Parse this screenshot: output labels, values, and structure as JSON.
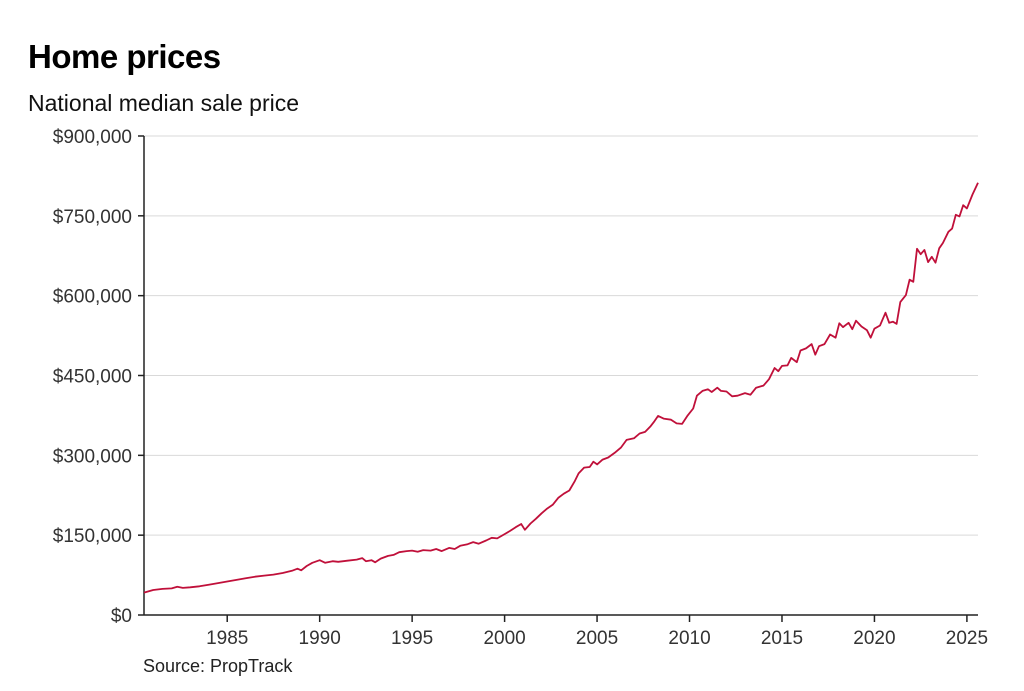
{
  "title": "Home prices",
  "subtitle": "National median sale price",
  "source": "Source: PropTrack",
  "colors": {
    "line": "#c0103a",
    "grid": "#d9d9d9",
    "axis": "#222222"
  },
  "chart_data": {
    "type": "line",
    "title": "Home prices",
    "subtitle": "National median sale price",
    "xlabel": "",
    "ylabel": "",
    "xlim": [
      1980.5,
      2025.6
    ],
    "ylim": [
      0,
      900000
    ],
    "grid": true,
    "legend": "none",
    "y_ticks": [
      0,
      150000,
      300000,
      450000,
      600000,
      750000,
      900000
    ],
    "y_tick_labels": [
      "$0",
      "$150,000",
      "$300,000",
      "$450,000",
      "$600,000",
      "$750,000",
      "$900,000"
    ],
    "x_ticks": [
      1985,
      1990,
      1995,
      2000,
      2005,
      2010,
      2015,
      2020,
      2025
    ],
    "x_tick_labels": [
      "1985",
      "1990",
      "1995",
      "2000",
      "2005",
      "2010",
      "2015",
      "2020",
      "2025"
    ],
    "series": [
      {
        "values": [
          [
            1980.5,
            42000
          ],
          [
            1981.0,
            47000
          ],
          [
            1981.5,
            49000
          ],
          [
            1982.0,
            50000
          ],
          [
            1982.3,
            53000
          ],
          [
            1982.6,
            51000
          ],
          [
            1983.0,
            52000
          ],
          [
            1983.5,
            54000
          ],
          [
            1984.0,
            57000
          ],
          [
            1984.5,
            60000
          ],
          [
            1985.0,
            63000
          ],
          [
            1985.5,
            66000
          ],
          [
            1986.0,
            69000
          ],
          [
            1986.5,
            72000
          ],
          [
            1987.0,
            74000
          ],
          [
            1987.5,
            76000
          ],
          [
            1988.0,
            79000
          ],
          [
            1988.5,
            83000
          ],
          [
            1988.8,
            87000
          ],
          [
            1989.0,
            84000
          ],
          [
            1989.3,
            92000
          ],
          [
            1989.6,
            98000
          ],
          [
            1990.0,
            103000
          ],
          [
            1990.3,
            98000
          ],
          [
            1990.7,
            101000
          ],
          [
            1991.0,
            100000
          ],
          [
            1991.5,
            102000
          ],
          [
            1992.0,
            104000
          ],
          [
            1992.3,
            107000
          ],
          [
            1992.5,
            101000
          ],
          [
            1992.8,
            103000
          ],
          [
            1993.0,
            99000
          ],
          [
            1993.3,
            106000
          ],
          [
            1993.7,
            111000
          ],
          [
            1994.0,
            113000
          ],
          [
            1994.3,
            118000
          ],
          [
            1994.7,
            120000
          ],
          [
            1995.0,
            121000
          ],
          [
            1995.3,
            119000
          ],
          [
            1995.6,
            122000
          ],
          [
            1996.0,
            121000
          ],
          [
            1996.3,
            124000
          ],
          [
            1996.6,
            120000
          ],
          [
            1997.0,
            126000
          ],
          [
            1997.3,
            124000
          ],
          [
            1997.6,
            130000
          ],
          [
            1998.0,
            133000
          ],
          [
            1998.3,
            137000
          ],
          [
            1998.6,
            134000
          ],
          [
            1999.0,
            140000
          ],
          [
            1999.3,
            145000
          ],
          [
            1999.6,
            144000
          ],
          [
            2000.0,
            152000
          ],
          [
            2000.3,
            158000
          ],
          [
            2000.6,
            165000
          ],
          [
            2000.9,
            171000
          ],
          [
            2001.1,
            160000
          ],
          [
            2001.4,
            172000
          ],
          [
            2001.7,
            181000
          ],
          [
            2002.0,
            191000
          ],
          [
            2002.3,
            200000
          ],
          [
            2002.6,
            207000
          ],
          [
            2002.9,
            220000
          ],
          [
            2003.2,
            228000
          ],
          [
            2003.5,
            234000
          ],
          [
            2003.8,
            252000
          ],
          [
            2004.0,
            266000
          ],
          [
            2004.3,
            277000
          ],
          [
            2004.6,
            278000
          ],
          [
            2004.8,
            288000
          ],
          [
            2005.0,
            283000
          ],
          [
            2005.3,
            292000
          ],
          [
            2005.6,
            296000
          ],
          [
            2006.0,
            306000
          ],
          [
            2006.3,
            315000
          ],
          [
            2006.6,
            329000
          ],
          [
            2007.0,
            332000
          ],
          [
            2007.3,
            341000
          ],
          [
            2007.6,
            344000
          ],
          [
            2007.9,
            355000
          ],
          [
            2008.1,
            364000
          ],
          [
            2008.3,
            374000
          ],
          [
            2008.6,
            369000
          ],
          [
            2009.0,
            367000
          ],
          [
            2009.3,
            360000
          ],
          [
            2009.6,
            359000
          ],
          [
            2009.9,
            375000
          ],
          [
            2010.2,
            388000
          ],
          [
            2010.4,
            412000
          ],
          [
            2010.7,
            421000
          ],
          [
            2011.0,
            424000
          ],
          [
            2011.2,
            419000
          ],
          [
            2011.5,
            427000
          ],
          [
            2011.7,
            421000
          ],
          [
            2012.0,
            420000
          ],
          [
            2012.3,
            411000
          ],
          [
            2012.6,
            412000
          ],
          [
            2013.0,
            417000
          ],
          [
            2013.3,
            414000
          ],
          [
            2013.6,
            427000
          ],
          [
            2014.0,
            431000
          ],
          [
            2014.3,
            443000
          ],
          [
            2014.6,
            464000
          ],
          [
            2014.8,
            458000
          ],
          [
            2015.0,
            468000
          ],
          [
            2015.3,
            469000
          ],
          [
            2015.5,
            483000
          ],
          [
            2015.8,
            475000
          ],
          [
            2016.0,
            497000
          ],
          [
            2016.3,
            501000
          ],
          [
            2016.6,
            509000
          ],
          [
            2016.8,
            489000
          ],
          [
            2017.0,
            505000
          ],
          [
            2017.3,
            509000
          ],
          [
            2017.6,
            527000
          ],
          [
            2017.9,
            521000
          ],
          [
            2018.1,
            548000
          ],
          [
            2018.3,
            541000
          ],
          [
            2018.6,
            549000
          ],
          [
            2018.8,
            537000
          ],
          [
            2019.0,
            553000
          ],
          [
            2019.3,
            542000
          ],
          [
            2019.6,
            535000
          ],
          [
            2019.8,
            521000
          ],
          [
            2020.0,
            538000
          ],
          [
            2020.3,
            544000
          ],
          [
            2020.6,
            568000
          ],
          [
            2020.8,
            549000
          ],
          [
            2021.0,
            551000
          ],
          [
            2021.2,
            547000
          ],
          [
            2021.4,
            588000
          ],
          [
            2021.7,
            601000
          ],
          [
            2021.9,
            630000
          ],
          [
            2022.1,
            626000
          ],
          [
            2022.3,
            688000
          ],
          [
            2022.5,
            678000
          ],
          [
            2022.7,
            686000
          ],
          [
            2022.9,
            663000
          ],
          [
            2023.1,
            673000
          ],
          [
            2023.3,
            662000
          ],
          [
            2023.5,
            689000
          ],
          [
            2023.7,
            699000
          ],
          [
            2024.0,
            720000
          ],
          [
            2024.2,
            726000
          ],
          [
            2024.4,
            752000
          ],
          [
            2024.6,
            749000
          ],
          [
            2024.8,
            770000
          ],
          [
            2025.0,
            764000
          ],
          [
            2025.3,
            790000
          ],
          [
            2025.6,
            812000
          ]
        ]
      }
    ]
  }
}
